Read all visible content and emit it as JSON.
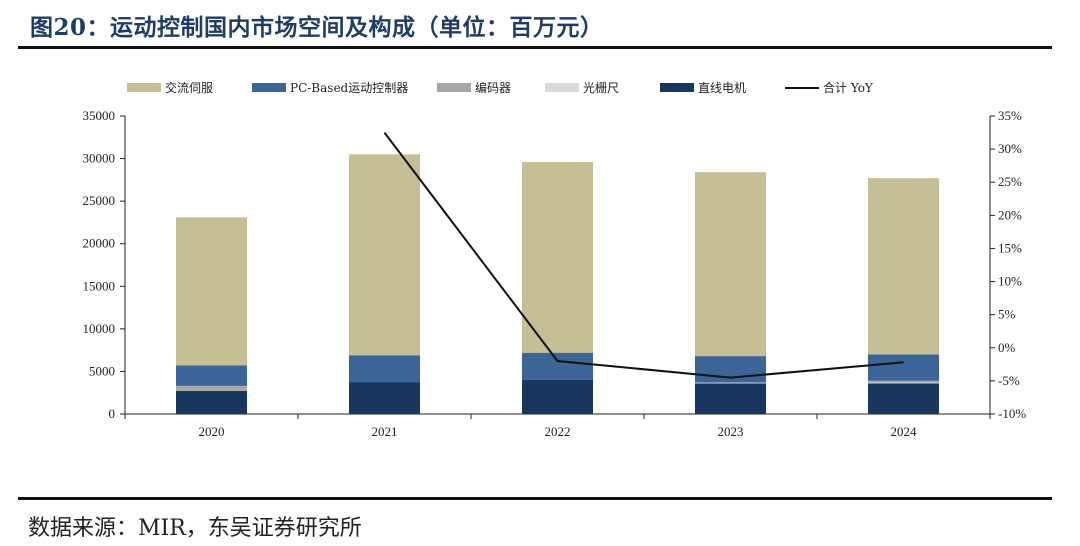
{
  "header": {
    "title": "图20：运动控制国内市场空间及构成（单位：百万元）"
  },
  "footer": {
    "source": "数据来源：MIR，东吴证券研究所"
  },
  "chart_data": {
    "type": "bar",
    "stacked": true,
    "categories": [
      "2020",
      "2021",
      "2022",
      "2023",
      "2024"
    ],
    "series": [
      {
        "name": "交流伺服",
        "color": "#c6bf96",
        "values": [
          17400,
          23600,
          22400,
          21600,
          20700
        ]
      },
      {
        "name": "PC-Based运动控制器",
        "color": "#3b6499",
        "values": [
          2400,
          3200,
          3200,
          3100,
          3100
        ]
      },
      {
        "name": "编码器",
        "color": "#a6a6a6",
        "values": [
          600,
          0,
          0,
          0,
          200
        ]
      },
      {
        "name": "光栅尺",
        "color": "#d9d9d9",
        "values": [
          0,
          0,
          0,
          100,
          100
        ]
      },
      {
        "name": "直线电机",
        "color": "#17375e",
        "values": [
          2700,
          3700,
          4000,
          3600,
          3600
        ]
      }
    ],
    "line": {
      "name": "合计 YoY",
      "color": "#111111",
      "values": [
        null,
        0.325,
        -0.02,
        -0.045,
        -0.022
      ]
    },
    "ylim": [
      0,
      35000
    ],
    "yticks": [
      "0",
      "5000",
      "10000",
      "15000",
      "20000",
      "25000",
      "30000",
      "35000"
    ],
    "y2lim": [
      -0.1,
      0.35
    ],
    "y2ticks": [
      "-10%",
      "-5%",
      "0%",
      "5%",
      "10%",
      "15%",
      "20%",
      "25%",
      "30%",
      "35%"
    ],
    "legend_position": "top",
    "grid": false
  }
}
